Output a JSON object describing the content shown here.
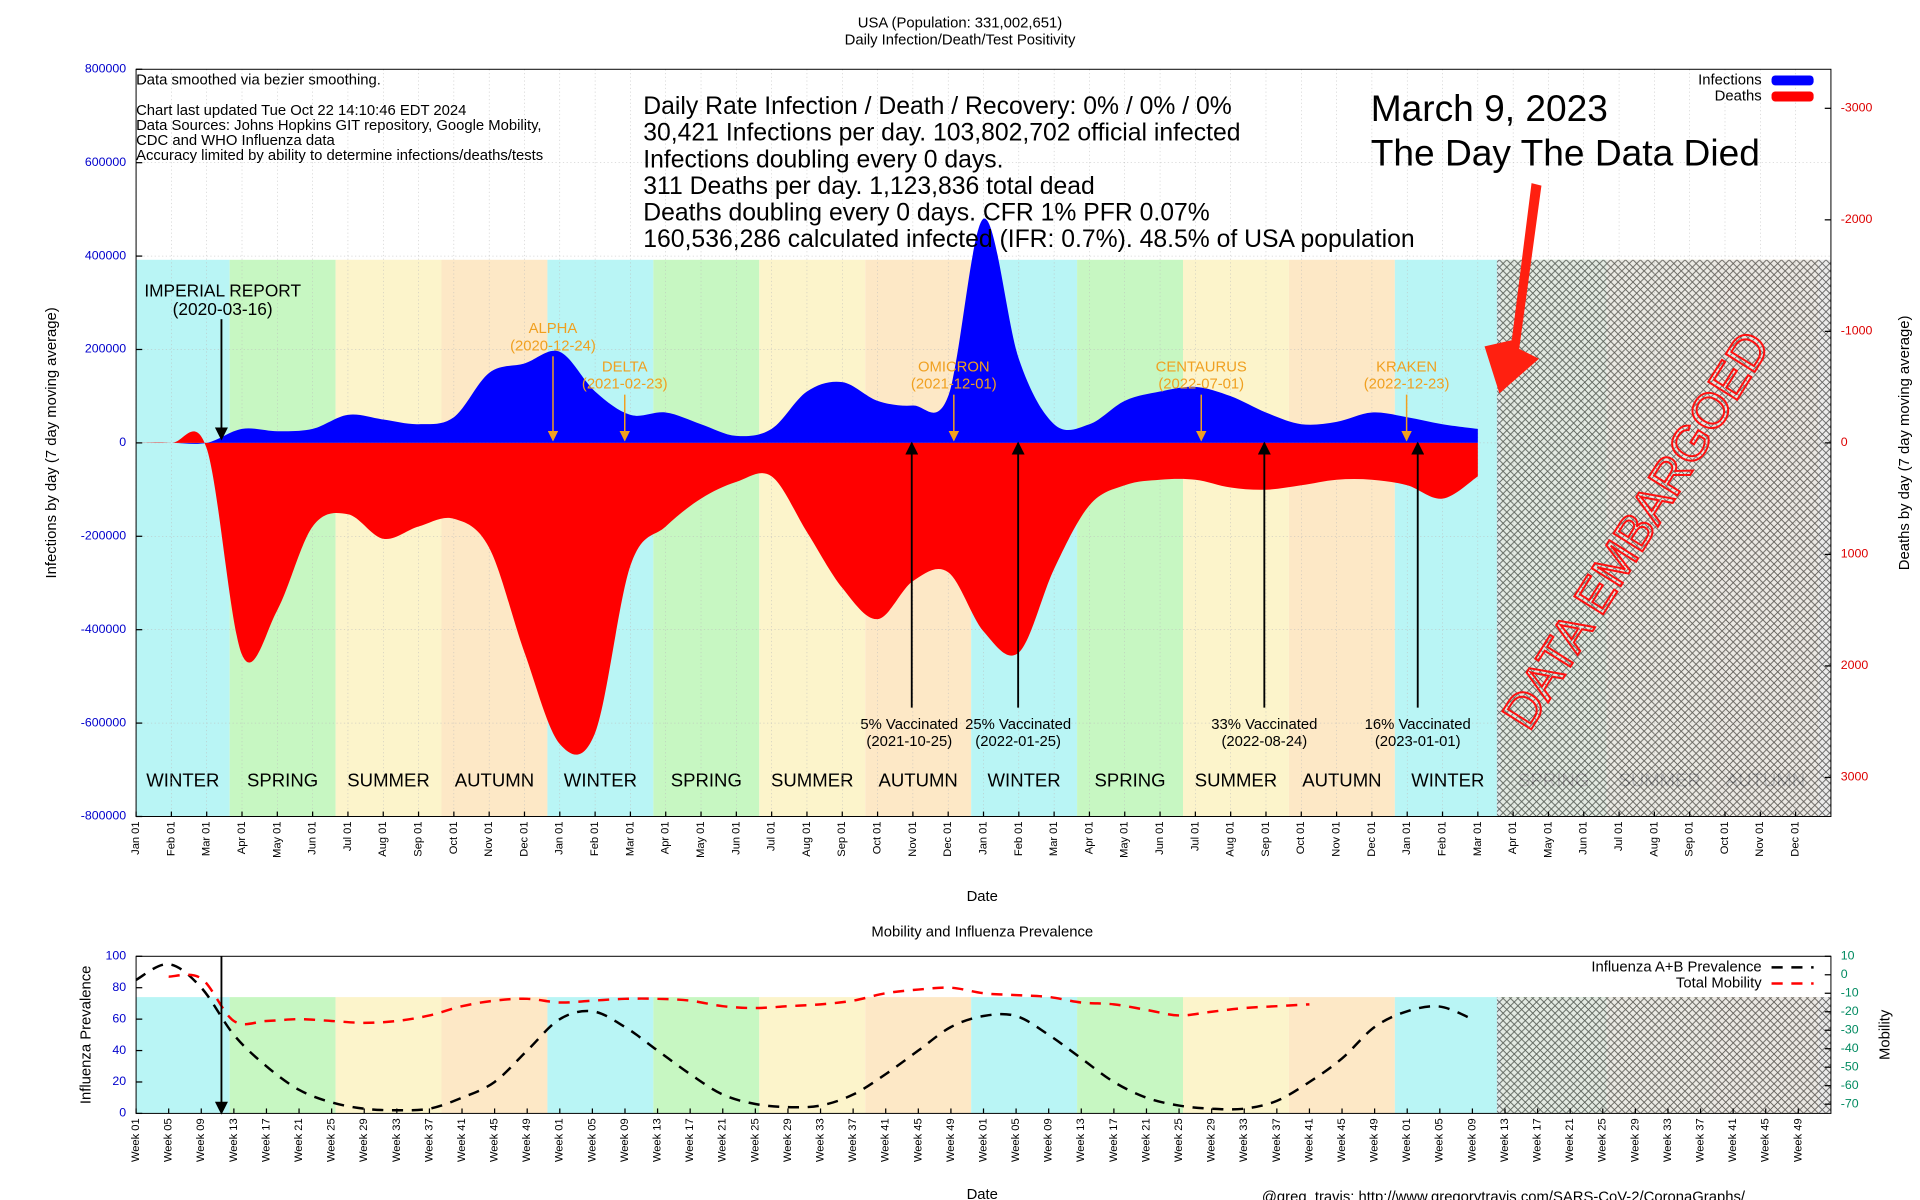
{
  "title": "USA (Population: 331,002,651)",
  "subtitle": "Daily Infection/Death/Test Positivity",
  "notes": [
    "Data smoothed via bezier smoothing.",
    "Chart last updated Tue Oct 22 14:10:46 EDT 2024",
    "Data Sources: Johns Hopkins GIT repository, Google Mobility,",
    "CDC and WHO Influenza data",
    "Accuracy limited by ability to determine infections/deaths/tests"
  ],
  "stats": [
    "Daily Rate Infection / Death / Recovery: 0% / 0% / 0%",
    "30,421 Infections per day.  103,802,702 official infected",
    "Infections doubling every 0 days.",
    "311 Deaths per day.  1,123,836 total dead",
    "Deaths doubling every 0 days.  CFR 1%  PFR 0.07%",
    "160,536,286 calculated infected (IFR: 0.7%).  48.5% of USA population"
  ],
  "headline": [
    "March 9, 2023",
    "The Day The Data Died"
  ],
  "embargo_label": "DATA EMBARGOED",
  "credit": "@greg_travis: http://www.gregorytravis.com/SARS-CoV-2/CoronaGraphs/",
  "chart_data": [
    {
      "type": "area",
      "x_label": "Date",
      "y_label": "Infections by day (7 day moving average)",
      "y2_label": "Deaths by day (7 day moving average)",
      "categories": [
        "Jan 01",
        "Feb 01",
        "Mar 01",
        "Apr 01",
        "May 01",
        "Jun 01",
        "Jul 01",
        "Aug 01",
        "Sep 01",
        "Oct 01",
        "Nov 01",
        "Dec 01",
        "Jan 01",
        "Feb 01",
        "Mar 01",
        "Apr 01",
        "May 01",
        "Jun 01",
        "Jul 01",
        "Aug 01",
        "Sep 01",
        "Oct 01",
        "Nov 01",
        "Dec 01",
        "Jan 01",
        "Feb 01",
        "Mar 01",
        "Apr 01",
        "May 01",
        "Jun 01",
        "Jul 01",
        "Aug 01",
        "Sep 01",
        "Oct 01",
        "Nov 01",
        "Dec 01",
        "Jan 01",
        "Feb 01",
        "Mar 01",
        "Apr 01",
        "May 01",
        "Jun 01",
        "Jul 01",
        "Aug 01",
        "Sep 01",
        "Oct 01",
        "Nov 01",
        "Dec 01"
      ],
      "series": [
        {
          "name": "Infections",
          "color": "#0000ff",
          "values": [
            0,
            0,
            0,
            30000,
            25000,
            30000,
            60000,
            50000,
            40000,
            55000,
            150000,
            170000,
            195000,
            110000,
            60000,
            65000,
            40000,
            15000,
            30000,
            110000,
            130000,
            90000,
            80000,
            100000,
            480000,
            180000,
            40000,
            40000,
            90000,
            110000,
            120000,
            100000,
            65000,
            40000,
            45000,
            65000,
            55000,
            40000,
            30000,
            null,
            null,
            null,
            null,
            null,
            null,
            null,
            null,
            null
          ]
        },
        {
          "name": "Deaths",
          "color": "#ff0000",
          "axis": "y2",
          "values": [
            0,
            0,
            50,
            1900,
            1500,
            750,
            640,
            860,
            750,
            680,
            940,
            1880,
            2700,
            2600,
            1100,
            750,
            500,
            350,
            300,
            800,
            1300,
            1580,
            1240,
            1160,
            1690,
            1880,
            1130,
            560,
            380,
            330,
            330,
            400,
            420,
            380,
            330,
            330,
            380,
            500,
            300,
            null,
            null,
            null,
            null,
            null,
            null,
            null,
            null,
            null
          ]
        }
      ],
      "ylim": [
        -800000,
        800000
      ],
      "yticks": [
        -800000,
        -600000,
        -400000,
        -200000,
        0,
        200000,
        400000,
        600000,
        800000
      ],
      "y2lim": [
        3350,
        -3350
      ],
      "y2ticks": [
        -3000,
        -2000,
        -1000,
        0,
        1000,
        2000,
        3000
      ],
      "grid": true,
      "legend": "top-right",
      "seasons": [
        "WINTER",
        "SPRING",
        "SUMMER",
        "AUTUMN",
        "WINTER",
        "SPRING",
        "SUMMER",
        "AUTUMN",
        "WINTER",
        "SPRING",
        "SUMMER",
        "AUTUMN",
        "WINTER",
        "SPRING",
        "SUMMER",
        "AUTUMN"
      ],
      "season_colors": [
        "#b9f5f5",
        "#c7f7c2",
        "#fcf4cb",
        "#fde8c6"
      ],
      "annotation_color": "#f0a020",
      "events": [
        {
          "label": "IMPERIAL REPORT",
          "date": "(2020-03-16)"
        }
      ],
      "variants": [
        {
          "label": "ALPHA",
          "date": "(2020-12-24)"
        },
        {
          "label": "DELTA",
          "date": "(2021-02-23)"
        },
        {
          "label": "OMICRON",
          "date": "(2021-12-01)"
        },
        {
          "label": "CENTAURUS",
          "date": "(2022-07-01)"
        },
        {
          "label": "KRAKEN",
          "date": "(2022-12-23)"
        }
      ],
      "vaccinations": [
        {
          "label": "5% Vaccinated",
          "date": "(2021-10-25)"
        },
        {
          "label": "25% Vaccinated",
          "date": "(2022-01-25)"
        },
        {
          "label": "33% Vaccinated",
          "date": "(2022-08-24)"
        },
        {
          "label": "16% Vaccinated",
          "date": "(2023-01-01)"
        }
      ]
    },
    {
      "type": "line",
      "title": "Mobility and Influenza Prevalence",
      "x_label": "Date",
      "y_label": "Influenza Prevalence",
      "y2_label": "Mobility",
      "categories": [
        "Week 01",
        "Week 05",
        "Week 09",
        "Week 13",
        "Week 17",
        "Week 21",
        "Week 25",
        "Week 29",
        "Week 33",
        "Week 37",
        "Week 41",
        "Week 45",
        "Week 49",
        "Week 01",
        "Week 05",
        "Week 09",
        "Week 13",
        "Week 17",
        "Week 21",
        "Week 25",
        "Week 29",
        "Week 33",
        "Week 37",
        "Week 41",
        "Week 45",
        "Week 49",
        "Week 01",
        "Week 05",
        "Week 09",
        "Week 13",
        "Week 17",
        "Week 21",
        "Week 25",
        "Week 29",
        "Week 33",
        "Week 37",
        "Week 41",
        "Week 45",
        "Week 49",
        "Week 01",
        "Week 05",
        "Week 09",
        "Week 13",
        "Week 17",
        "Week 21",
        "Week 25",
        "Week 29",
        "Week 33",
        "Week 37",
        "Week 41",
        "Week 45",
        "Week 49"
      ],
      "series": [
        {
          "name": "Influenza A+B Prevalence",
          "color": "#000000",
          "values": [
            85,
            95,
            80,
            50,
            30,
            15,
            7,
            3,
            2,
            3,
            10,
            20,
            40,
            60,
            65,
            55,
            40,
            25,
            12,
            6,
            4,
            5,
            12,
            25,
            40,
            55,
            62,
            62,
            50,
            35,
            20,
            10,
            5,
            3,
            3,
            8,
            20,
            35,
            55,
            65,
            68,
            60,
            null,
            null,
            null,
            null,
            null,
            null,
            null,
            null,
            null,
            null
          ]
        },
        {
          "name": "Total Mobility",
          "color": "#ff0000",
          "axis": "y2",
          "values": [
            null,
            -1,
            -2,
            -25,
            -25,
            -24,
            -25,
            -26,
            -25,
            -22,
            -17,
            -14,
            -13,
            -15,
            -14,
            -13,
            -13,
            -14,
            -17,
            -18,
            -17,
            -16,
            -14,
            -10,
            -8,
            -7,
            -10,
            -11,
            -12,
            -15,
            -16,
            -19,
            -22,
            -20,
            -18,
            -17,
            -16,
            null,
            null,
            null,
            null,
            null,
            null,
            null,
            null,
            null,
            null,
            null,
            null,
            null,
            null,
            null
          ]
        }
      ],
      "ylim": [
        0,
        100
      ],
      "yticks": [
        0,
        20,
        40,
        60,
        80,
        100
      ],
      "y2lim": [
        -75,
        10
      ],
      "y2ticks": [
        10,
        0,
        -10,
        -20,
        -30,
        -40,
        -50,
        -60,
        -70
      ],
      "legend": "top-right",
      "line_style": "dashed"
    }
  ]
}
